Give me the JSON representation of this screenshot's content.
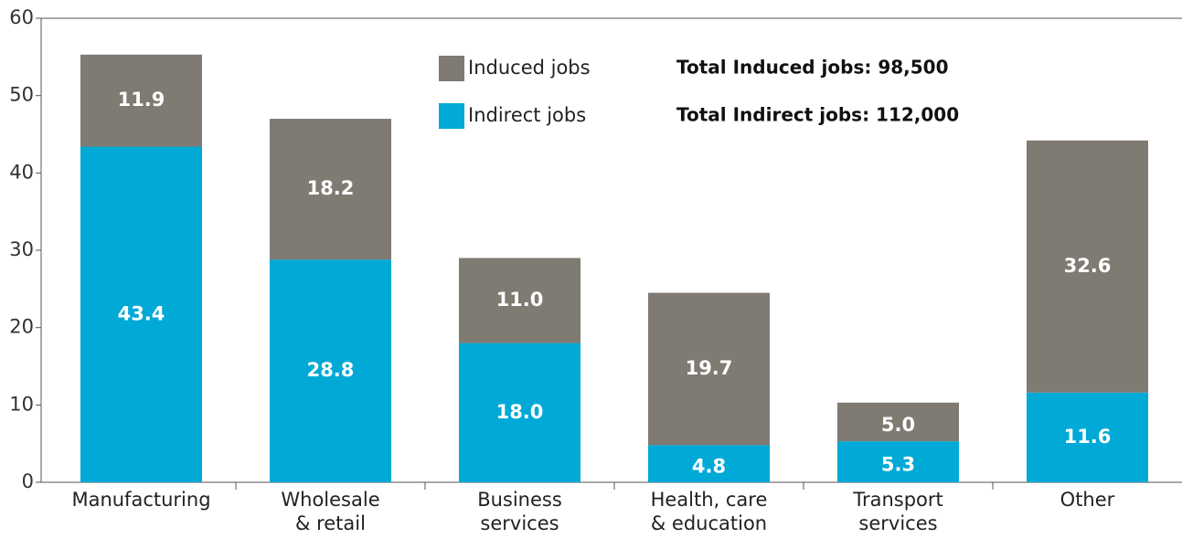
{
  "chart_data": {
    "type": "stacked_bar",
    "categories": [
      "Manufacturing",
      "Wholesale\n& retail",
      "Business\nservices",
      "Health, care\n& education",
      "Transport\nservices",
      "Other"
    ],
    "series": [
      {
        "name": "Indirect jobs",
        "color": "#00a9d6",
        "values": [
          43.4,
          28.8,
          18.0,
          4.8,
          5.3,
          11.6
        ],
        "value_labels": [
          "43.4",
          "28.8",
          "18.0",
          "4.8",
          "5.3",
          "11.6"
        ]
      },
      {
        "name": "Induced jobs",
        "color": "#7f7a72",
        "values": [
          11.9,
          18.2,
          11.0,
          19.7,
          5.0,
          32.6
        ],
        "value_labels": [
          "11.9",
          "18.2",
          "11.0",
          "19.7",
          "5.0",
          "32.6"
        ]
      }
    ],
    "annotations": [
      "Total Induced jobs: 98,500",
      "Total Indirect jobs: 112,000"
    ],
    "ylim": [
      0,
      60
    ],
    "yticks": [
      0,
      10,
      20,
      30,
      40,
      50,
      60
    ]
  }
}
